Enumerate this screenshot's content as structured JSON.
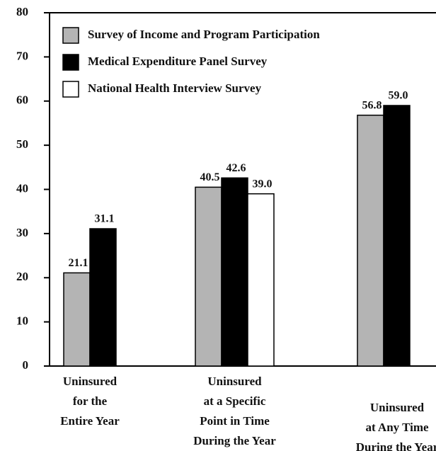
{
  "chart_data": {
    "type": "bar",
    "categories": [
      "Uninsured\nfor the\nEntire Year",
      "Uninsured\nat a Specific\nPoint in Time\nDuring the Year",
      "Uninsured\nat Any Time\nDuring the Year"
    ],
    "series": [
      {
        "name": "Survey of Income and Program Participation",
        "color": "#b4b4b4",
        "values": [
          21.1,
          40.5,
          56.8
        ],
        "value_labels": [
          "21.1",
          "40.5",
          "56.8"
        ]
      },
      {
        "name": "Medical Expenditure Panel Survey",
        "color": "#000000",
        "values": [
          31.1,
          42.6,
          59.0
        ],
        "value_labels": [
          "31.1",
          "42.6",
          "59.0"
        ]
      },
      {
        "name": "National Health Interview Survey",
        "color": "#ffffff",
        "values": [
          null,
          39.0,
          null
        ],
        "value_labels": [
          null,
          "39.0",
          null
        ]
      }
    ],
    "ylim": [
      0,
      80
    ],
    "yticks": [
      0,
      10,
      20,
      30,
      40,
      50,
      60,
      70,
      80
    ],
    "legend": "upper left"
  }
}
